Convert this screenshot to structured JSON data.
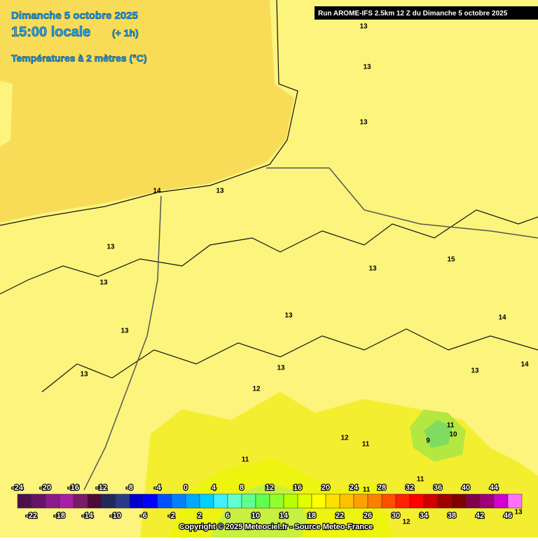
{
  "header": {
    "date": "Dimanche 5 octobre 2025",
    "time": "15:00 locale",
    "offset": "(+ 1h)",
    "field": "Températures à 2 mètres (°C)",
    "run": "Run AROME-IFS 2.5km 12 Z du Dimanche 5 octobre 2025"
  },
  "contour_labels": [
    13,
    13,
    13,
    14,
    13,
    13,
    13,
    13,
    15,
    13,
    13,
    14,
    14,
    13,
    13,
    13,
    12,
    12,
    11,
    11,
    9,
    10,
    11,
    11,
    11,
    12,
    13
  ],
  "legend": {
    "ticks_top": [
      -24,
      -20,
      -16,
      -12,
      -8,
      -4,
      0,
      4,
      8,
      12,
      16,
      20,
      24,
      28,
      32,
      36,
      40,
      44
    ],
    "ticks_bottom": [
      -22,
      -18,
      -14,
      -10,
      -6,
      -2,
      2,
      6,
      10,
      14,
      18,
      22,
      26,
      30,
      34,
      38,
      42,
      46
    ],
    "colors": [
      "#4d0f4d",
      "#661466",
      "#8c1a8c",
      "#a61fa6",
      "#7a1a6a",
      "#4a0a3a",
      "#1e2a5a",
      "#2a3a8a",
      "#0000cc",
      "#0000ff",
      "#0050ff",
      "#0080ff",
      "#00a8ff",
      "#00d0ff",
      "#40f0ff",
      "#60ffd0",
      "#60ff90",
      "#60ff50",
      "#90ff30",
      "#b8ff00",
      "#e0ff00",
      "#ffff00",
      "#ffe000",
      "#ffc000",
      "#ffa000",
      "#ff8000",
      "#ff5000",
      "#ff2000",
      "#ff0000",
      "#d00000",
      "#a00000",
      "#800000",
      "#80004a",
      "#a0007a",
      "#d000d0",
      "#ff70ff"
    ]
  },
  "footer": {
    "copyright": "Copyright © 2025 Meteociel.fr - Source Meteo-France"
  }
}
